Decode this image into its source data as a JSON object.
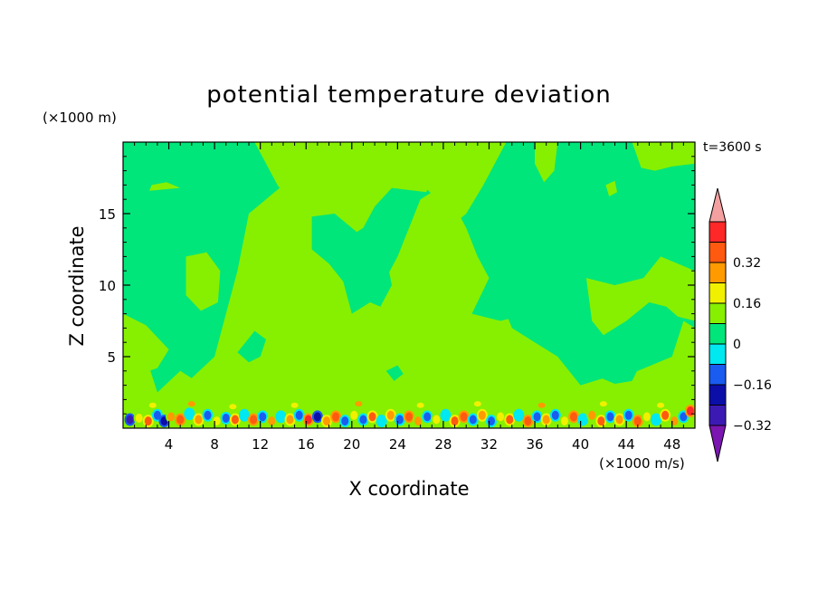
{
  "chart_data": {
    "type": "heatmap",
    "title": "potential temperature deviation",
    "time_label": "t=3600 s",
    "xlabel": "X coordinate",
    "ylabel": "Z coordinate",
    "x_unit": "(×1000 m/s)",
    "y_unit": "(×1000 m)",
    "xlim": [
      0,
      50
    ],
    "ylim": [
      0,
      20
    ],
    "x_ticks": [
      4,
      8,
      12,
      16,
      20,
      24,
      28,
      32,
      36,
      40,
      44,
      48
    ],
    "y_ticks": [
      5,
      10,
      15
    ],
    "colorbar": {
      "tick_labels": [
        "0.32",
        "0.16",
        "0",
        "-0.16",
        "-0.32"
      ],
      "levels": [
        {
          "color": "#7b16b0"
        },
        {
          "color": "#3b1ab4"
        },
        {
          "color": "#0c0ea8"
        },
        {
          "color": "#1a5cf0"
        },
        {
          "color": "#00e8f0"
        },
        {
          "color": "#00e67a"
        },
        {
          "color": "#86f000"
        },
        {
          "color": "#f0f000"
        },
        {
          "color": "#ff9a00"
        },
        {
          "color": "#ff5a10"
        },
        {
          "color": "#ff2828"
        },
        {
          "color": "#f4a0a0"
        }
      ]
    },
    "field": {
      "background_color": "#00e67a",
      "positive_color": "#86f000",
      "regions": [
        {
          "value": 0.04,
          "points": [
            [
              0,
              0
            ],
            [
              50,
              0
            ],
            [
              50,
              7
            ],
            [
              49,
              7.5
            ],
            [
              48,
              5
            ],
            [
              45,
              4
            ],
            [
              42,
              3.5
            ],
            [
              40,
              3
            ],
            [
              38,
              5
            ],
            [
              36,
              6
            ],
            [
              34,
              7
            ],
            [
              33,
              9
            ],
            [
              31,
              12
            ],
            [
              30,
              14
            ],
            [
              28,
              17
            ],
            [
              26,
              16
            ],
            [
              24,
              12
            ],
            [
              22,
              9
            ],
            [
              20,
              8
            ],
            [
              19,
              11
            ],
            [
              18,
              14
            ],
            [
              17,
              16
            ],
            [
              14,
              17
            ],
            [
              11,
              15
            ],
            [
              10,
              11
            ],
            [
              8,
              5
            ],
            [
              6,
              3.5
            ],
            [
              5,
              4
            ],
            [
              3,
              2.5
            ],
            [
              2,
              5
            ],
            [
              0,
              6
            ]
          ]
        },
        {
          "value": 0.04,
          "points": [
            [
              11.5,
              20
            ],
            [
              27,
              20
            ],
            [
              27.5,
              18
            ],
            [
              26.5,
              16.5
            ],
            [
              23.5,
              16.8
            ],
            [
              22,
              15.5
            ],
            [
              21,
              14
            ],
            [
              19,
              13
            ],
            [
              17,
              12
            ],
            [
              16,
              13
            ],
            [
              15,
              15.5
            ],
            [
              13.5,
              17
            ]
          ]
        },
        {
          "value": 0.04,
          "points": [
            [
              0,
              8
            ],
            [
              2,
              7.2
            ],
            [
              4,
              5.5
            ],
            [
              3,
              4.2
            ],
            [
              1.5,
              3.8
            ],
            [
              0,
              4.5
            ]
          ]
        },
        {
          "value": 0.04,
          "points": [
            [
              5.5,
              12
            ],
            [
              7.3,
              12.3
            ],
            [
              8.5,
              11
            ],
            [
              8.3,
              8.8
            ],
            [
              6.8,
              8.2
            ],
            [
              5.5,
              9.3
            ]
          ]
        },
        {
          "value": 0.04,
          "points": [
            [
              2.3,
              16.6
            ],
            [
              5,
              16.8
            ],
            [
              3.8,
              17.2
            ],
            [
              2.5,
              17
            ]
          ]
        },
        {
          "value": 0.04,
          "points": [
            [
              22.2,
              20
            ],
            [
              33.5,
              20
            ],
            [
              31.5,
              17
            ],
            [
              30,
              15
            ],
            [
              28.5,
              14
            ],
            [
              27.5,
              16
            ],
            [
              25.5,
              17.5
            ],
            [
              23.8,
              18.5
            ]
          ]
        },
        {
          "value": 0.04,
          "points": [
            [
              36,
              20
            ],
            [
              38,
              20
            ],
            [
              37.7,
              18
            ],
            [
              36.8,
              17.2
            ],
            [
              36,
              18.5
            ]
          ]
        },
        {
          "value": 0.04,
          "points": [
            [
              44.5,
              20
            ],
            [
              50,
              20
            ],
            [
              50,
              18.5
            ],
            [
              48,
              18.3
            ],
            [
              46.5,
              18
            ],
            [
              45.3,
              18.2
            ]
          ]
        },
        {
          "value": 0.04,
          "points": [
            [
              40.5,
              10.5
            ],
            [
              43,
              10
            ],
            [
              45.5,
              10.5
            ],
            [
              47,
              12
            ],
            [
              48.5,
              11.5
            ],
            [
              50,
              11
            ],
            [
              50,
              7.5
            ],
            [
              48.5,
              7.8
            ],
            [
              47.5,
              8.5
            ],
            [
              46,
              8.8
            ],
            [
              44,
              7.5
            ],
            [
              42,
              6.5
            ],
            [
              41,
              7.5
            ]
          ]
        },
        {
          "value": 0.04,
          "points": [
            [
              42.2,
              17
            ],
            [
              43,
              17.3
            ],
            [
              43.2,
              16.5
            ],
            [
              42.5,
              16.2
            ]
          ]
        },
        {
          "value": -0.04,
          "points": [
            [
              16.5,
              14.8
            ],
            [
              18.5,
              15
            ],
            [
              20,
              14
            ],
            [
              21.5,
              13
            ],
            [
              23,
              12
            ],
            [
              23.5,
              10
            ],
            [
              22.5,
              8.5
            ],
            [
              21,
              9
            ],
            [
              19.5,
              10
            ],
            [
              18,
              11.5
            ],
            [
              16.5,
              12.5
            ]
          ]
        },
        {
          "value": -0.04,
          "points": [
            [
              30.5,
              8
            ],
            [
              32,
              10.5
            ],
            [
              34,
              11
            ],
            [
              35,
              9.5
            ],
            [
              34.5,
              7.8
            ],
            [
              33,
              7.5
            ]
          ]
        },
        {
          "value": -0.04,
          "points": [
            [
              10,
              5.3
            ],
            [
              11.5,
              6.8
            ],
            [
              12.5,
              6.2
            ],
            [
              12,
              5
            ],
            [
              11,
              4.6
            ]
          ]
        },
        {
          "value": -0.04,
          "points": [
            [
              41.5,
              3.6
            ],
            [
              43,
              4.4
            ],
            [
              45,
              4.1
            ],
            [
              44.5,
              3.3
            ],
            [
              43,
              3.1
            ]
          ]
        },
        {
          "value": -0.04,
          "points": [
            [
              23,
              4
            ],
            [
              24,
              4.4
            ],
            [
              24.5,
              3.8
            ],
            [
              23.7,
              3.3
            ]
          ]
        },
        {
          "value": -0.04,
          "points": [
            [
              3.6,
              6.3
            ],
            [
              4.8,
              6.6
            ],
            [
              5.3,
              5.8
            ],
            [
              4.2,
              5.6
            ]
          ]
        }
      ],
      "cells": [
        {
          "x": 0.6,
          "z": 0.6,
          "value": -0.36
        },
        {
          "x": 1.4,
          "z": 0.7,
          "value": 0.12
        },
        {
          "x": 2.2,
          "z": 0.5,
          "value": 0.24
        },
        {
          "x": 3.0,
          "z": 0.9,
          "value": -0.2
        },
        {
          "x": 3.6,
          "z": 0.5,
          "value": -0.28
        },
        {
          "x": 4.2,
          "z": 0.8,
          "value": 0.16
        },
        {
          "x": 5.0,
          "z": 0.6,
          "value": 0.28
        },
        {
          "x": 5.8,
          "z": 1.0,
          "value": -0.12
        },
        {
          "x": 6.6,
          "z": 0.6,
          "value": 0.2
        },
        {
          "x": 7.4,
          "z": 0.9,
          "value": -0.16
        },
        {
          "x": 8.2,
          "z": 0.5,
          "value": 0.12
        },
        {
          "x": 9.0,
          "z": 0.7,
          "value": -0.2
        },
        {
          "x": 9.8,
          "z": 0.6,
          "value": 0.24
        },
        {
          "x": 10.6,
          "z": 0.9,
          "value": -0.12
        },
        {
          "x": 11.4,
          "z": 0.6,
          "value": 0.28
        },
        {
          "x": 12.2,
          "z": 0.8,
          "value": -0.2
        },
        {
          "x": 13.0,
          "z": 0.5,
          "value": 0.16
        },
        {
          "x": 13.8,
          "z": 0.8,
          "value": -0.12
        },
        {
          "x": 14.6,
          "z": 0.6,
          "value": 0.2
        },
        {
          "x": 15.4,
          "z": 0.9,
          "value": -0.16
        },
        {
          "x": 16.2,
          "z": 0.6,
          "value": 0.32
        },
        {
          "x": 17.0,
          "z": 0.8,
          "value": -0.28
        },
        {
          "x": 17.8,
          "z": 0.5,
          "value": 0.2
        },
        {
          "x": 18.6,
          "z": 0.8,
          "value": 0.28
        },
        {
          "x": 19.4,
          "z": 0.5,
          "value": -0.16
        },
        {
          "x": 20.2,
          "z": 0.9,
          "value": 0.12
        },
        {
          "x": 21.0,
          "z": 0.6,
          "value": -0.2
        },
        {
          "x": 21.8,
          "z": 0.8,
          "value": 0.24
        },
        {
          "x": 22.6,
          "z": 0.5,
          "value": -0.12
        },
        {
          "x": 23.4,
          "z": 0.9,
          "value": 0.2
        },
        {
          "x": 24.2,
          "z": 0.6,
          "value": -0.16
        },
        {
          "x": 25.0,
          "z": 0.8,
          "value": 0.28
        },
        {
          "x": 25.8,
          "z": 0.5,
          "value": 0.16
        },
        {
          "x": 26.6,
          "z": 0.8,
          "value": -0.2
        },
        {
          "x": 27.4,
          "z": 0.6,
          "value": 0.12
        },
        {
          "x": 28.2,
          "z": 0.9,
          "value": -0.12
        },
        {
          "x": 29.0,
          "z": 0.5,
          "value": 0.24
        },
        {
          "x": 29.8,
          "z": 0.8,
          "value": 0.28
        },
        {
          "x": 30.6,
          "z": 0.6,
          "value": -0.16
        },
        {
          "x": 31.4,
          "z": 0.9,
          "value": 0.2
        },
        {
          "x": 32.2,
          "z": 0.5,
          "value": -0.2
        },
        {
          "x": 33.0,
          "z": 0.8,
          "value": 0.12
        },
        {
          "x": 33.8,
          "z": 0.6,
          "value": 0.24
        },
        {
          "x": 34.6,
          "z": 0.9,
          "value": -0.12
        },
        {
          "x": 35.4,
          "z": 0.5,
          "value": 0.28
        },
        {
          "x": 36.2,
          "z": 0.8,
          "value": -0.16
        },
        {
          "x": 37.0,
          "z": 0.6,
          "value": 0.2
        },
        {
          "x": 37.8,
          "z": 0.9,
          "value": -0.2
        },
        {
          "x": 38.6,
          "z": 0.5,
          "value": 0.12
        },
        {
          "x": 39.4,
          "z": 0.8,
          "value": 0.28
        },
        {
          "x": 40.2,
          "z": 0.6,
          "value": -0.12
        },
        {
          "x": 41.0,
          "z": 0.9,
          "value": 0.16
        },
        {
          "x": 41.8,
          "z": 0.5,
          "value": 0.24
        },
        {
          "x": 42.6,
          "z": 0.8,
          "value": -0.2
        },
        {
          "x": 43.4,
          "z": 0.6,
          "value": 0.2
        },
        {
          "x": 44.2,
          "z": 0.9,
          "value": -0.16
        },
        {
          "x": 45.0,
          "z": 0.5,
          "value": 0.28
        },
        {
          "x": 45.8,
          "z": 0.8,
          "value": 0.12
        },
        {
          "x": 46.6,
          "z": 0.6,
          "value": -0.12
        },
        {
          "x": 47.4,
          "z": 0.9,
          "value": 0.24
        },
        {
          "x": 48.2,
          "z": 0.5,
          "value": 0.16
        },
        {
          "x": 49.0,
          "z": 0.8,
          "value": -0.2
        },
        {
          "x": 49.6,
          "z": 1.2,
          "value": 0.32
        },
        {
          "x": 2.6,
          "z": 1.6,
          "value": 0.12
        },
        {
          "x": 6.0,
          "z": 1.7,
          "value": 0.16
        },
        {
          "x": 9.6,
          "z": 1.5,
          "value": 0.12
        },
        {
          "x": 15.0,
          "z": 1.6,
          "value": 0.12
        },
        {
          "x": 20.6,
          "z": 1.7,
          "value": 0.16
        },
        {
          "x": 26.0,
          "z": 1.6,
          "value": 0.12
        },
        {
          "x": 31.0,
          "z": 1.7,
          "value": 0.12
        },
        {
          "x": 36.6,
          "z": 1.6,
          "value": 0.16
        },
        {
          "x": 42.0,
          "z": 1.7,
          "value": 0.12
        },
        {
          "x": 47.0,
          "z": 1.6,
          "value": 0.12
        }
      ]
    }
  }
}
